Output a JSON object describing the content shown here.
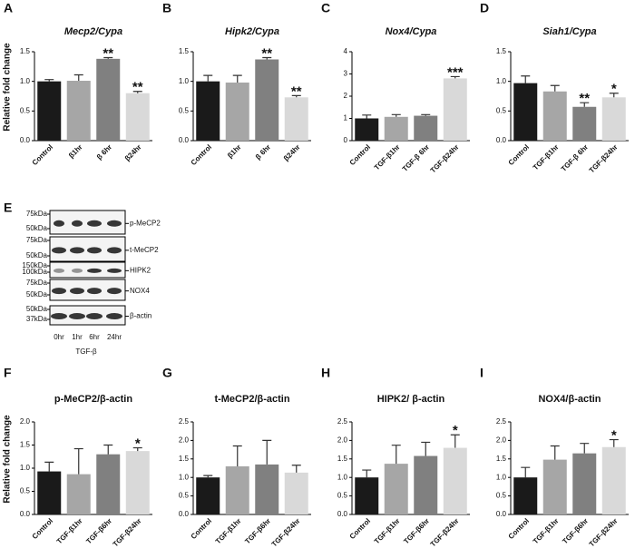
{
  "chart_data": [
    {
      "type": "bar",
      "panel": "A",
      "title": "Mecp2/Cypa",
      "ylabel": "Relative fold change",
      "categories": [
        "Control",
        "β1hr",
        "β 6hr",
        "β24hr"
      ],
      "values": [
        1.0,
        1.01,
        1.38,
        0.8
      ],
      "errors": [
        0.03,
        0.1,
        0.02,
        0.03
      ],
      "significance": [
        null,
        null,
        "**",
        "**"
      ],
      "colors": [
        "#1a1a1a",
        "#a6a6a6",
        "#808080",
        "#d9d9d9"
      ],
      "ylim": [
        0,
        1.5
      ],
      "yticks": [
        {
          "value": 0,
          "label": "0.0"
        },
        {
          "value": 0.5,
          "label": "0.5"
        },
        {
          "value": 1,
          "label": "1.0"
        },
        {
          "value": 1.5,
          "label": "1.5"
        }
      ]
    },
    {
      "type": "bar",
      "panel": "B",
      "title": "Hipk2/Cypa",
      "categories": [
        "Control",
        "β1hr",
        "β 6hr",
        "β24hr"
      ],
      "values": [
        1.0,
        0.98,
        1.37,
        0.73
      ],
      "errors": [
        0.1,
        0.12,
        0.03,
        0.03
      ],
      "significance": [
        null,
        null,
        "**",
        "**"
      ],
      "colors": [
        "#1a1a1a",
        "#a6a6a6",
        "#808080",
        "#d9d9d9"
      ],
      "ylim": [
        0,
        1.5
      ],
      "yticks": [
        {
          "value": 0,
          "label": "0.0"
        },
        {
          "value": 0.5,
          "label": "0.5"
        },
        {
          "value": 1,
          "label": "1.0"
        },
        {
          "value": 1.5,
          "label": "1.5"
        }
      ]
    },
    {
      "type": "bar",
      "panel": "C",
      "title": "Nox4/Cypa",
      "categories": [
        "Control",
        "TGF-β1hr",
        "TGF-β 6hr",
        "TGF-β24hr"
      ],
      "values": [
        1.0,
        1.07,
        1.12,
        2.8
      ],
      "errors": [
        0.15,
        0.1,
        0.05,
        0.08
      ],
      "significance": [
        null,
        null,
        null,
        "***"
      ],
      "colors": [
        "#1a1a1a",
        "#a6a6a6",
        "#808080",
        "#d9d9d9"
      ],
      "ylim": [
        0,
        4
      ],
      "yticks": [
        0,
        1,
        2,
        3,
        4
      ]
    },
    {
      "type": "bar",
      "panel": "D",
      "title": "Siah1/Cypa",
      "categories": [
        "Control",
        "TGF-β1hr",
        "TGF-β 6hr",
        "TGF-β24hr"
      ],
      "values": [
        0.97,
        0.83,
        0.57,
        0.73
      ],
      "errors": [
        0.12,
        0.1,
        0.07,
        0.07
      ],
      "significance": [
        null,
        null,
        "**",
        "*"
      ],
      "colors": [
        "#1a1a1a",
        "#a6a6a6",
        "#808080",
        "#d9d9d9"
      ],
      "ylim": [
        0,
        1.5
      ],
      "yticks": [
        {
          "value": 0,
          "label": "0.0"
        },
        {
          "value": 0.5,
          "label": "0.5"
        },
        {
          "value": 1,
          "label": "1.0"
        },
        {
          "value": 1.5,
          "label": "1.5"
        }
      ]
    },
    {
      "type": "bar",
      "panel": "F",
      "title": "p-MeCP2/β-actin",
      "ylabel": "Relative fold change",
      "categories": [
        "Control",
        "TGF-β1hr",
        "TGF-β6hr",
        "TGF-β24hr"
      ],
      "values": [
        0.93,
        0.87,
        1.3,
        1.37
      ],
      "errors": [
        0.2,
        0.55,
        0.2,
        0.07
      ],
      "significance": [
        null,
        null,
        null,
        "*"
      ],
      "colors": [
        "#1a1a1a",
        "#a6a6a6",
        "#808080",
        "#d9d9d9"
      ],
      "ylim": [
        0,
        2
      ],
      "yticks": [
        {
          "value": 0,
          "label": "0.0"
        },
        {
          "value": 0.5,
          "label": "0.5"
        },
        {
          "value": 1,
          "label": "1.0"
        },
        {
          "value": 1.5,
          "label": "1.5"
        },
        {
          "value": 2,
          "label": "2.0"
        }
      ]
    },
    {
      "type": "bar",
      "panel": "G",
      "title": "t-MeCP2/β-actin",
      "categories": [
        "Control",
        "TGF-β1hr",
        "TGF-β6hr",
        "TGF-β24hr"
      ],
      "values": [
        1.0,
        1.3,
        1.35,
        1.13
      ],
      "errors": [
        0.05,
        0.55,
        0.65,
        0.2
      ],
      "significance": [
        null,
        null,
        null,
        null
      ],
      "colors": [
        "#1a1a1a",
        "#a6a6a6",
        "#808080",
        "#d9d9d9"
      ],
      "ylim": [
        0,
        2.5
      ],
      "yticks": [
        {
          "value": 0,
          "label": "0.0"
        },
        {
          "value": 0.5,
          "label": "0.5"
        },
        {
          "value": 1,
          "label": "1.0"
        },
        {
          "value": 1.5,
          "label": "1.5"
        },
        {
          "value": 2,
          "label": "2.0"
        },
        {
          "value": 2.5,
          "label": "2.5"
        }
      ]
    },
    {
      "type": "bar",
      "panel": "H",
      "title": "HIPK2/ β-actin",
      "categories": [
        "Control",
        "TGF-β1hr",
        "TGF-β6hr",
        "TGF-β24hr"
      ],
      "values": [
        1.0,
        1.37,
        1.58,
        1.8
      ],
      "errors": [
        0.2,
        0.5,
        0.37,
        0.35
      ],
      "significance": [
        null,
        null,
        null,
        "*"
      ],
      "colors": [
        "#1a1a1a",
        "#a6a6a6",
        "#808080",
        "#d9d9d9"
      ],
      "ylim": [
        0,
        2.5
      ],
      "yticks": [
        {
          "value": 0,
          "label": "0.0"
        },
        {
          "value": 0.5,
          "label": "0.5"
        },
        {
          "value": 1,
          "label": "1.0"
        },
        {
          "value": 1.5,
          "label": "1.5"
        },
        {
          "value": 2,
          "label": "2.0"
        },
        {
          "value": 2.5,
          "label": "2.5"
        }
      ]
    },
    {
      "type": "bar",
      "panel": "I",
      "title": "NOX4/β-actin",
      "categories": [
        "Control",
        "TGF-β1hr",
        "TGF-β6hr",
        "TGF-β24hr"
      ],
      "values": [
        1.0,
        1.48,
        1.65,
        1.82
      ],
      "errors": [
        0.27,
        0.37,
        0.27,
        0.2
      ],
      "significance": [
        null,
        null,
        null,
        "*"
      ],
      "colors": [
        "#1a1a1a",
        "#a6a6a6",
        "#808080",
        "#d9d9d9"
      ],
      "ylim": [
        0,
        2.5
      ],
      "yticks": [
        {
          "value": 0,
          "label": "0.0"
        },
        {
          "value": 0.5,
          "label": "0.5"
        },
        {
          "value": 1,
          "label": "1.0"
        },
        {
          "value": 1.5,
          "label": "1.5"
        },
        {
          "value": 2,
          "label": "2.0"
        },
        {
          "value": 2.5,
          "label": "2.5"
        }
      ]
    }
  ],
  "blot": {
    "panel": "E",
    "rows": [
      {
        "markers": [
          "75kDa",
          "50kDa"
        ],
        "label": "p-MeCP2"
      },
      {
        "markers": [
          "75kDa",
          "50kDa"
        ],
        "label": "t-MeCP2"
      },
      {
        "markers": [
          "150kDa",
          "100kDa"
        ],
        "label": "HIPK2"
      },
      {
        "markers": [
          "75kDa",
          "50kDa"
        ],
        "label": "NOX4"
      },
      {
        "markers": [
          "50kDa",
          "37kDa"
        ],
        "label": "β-actin"
      }
    ],
    "lanes": [
      "0hr",
      "1hr",
      "6hr",
      "24hr"
    ],
    "treatment": "TGF-β"
  }
}
